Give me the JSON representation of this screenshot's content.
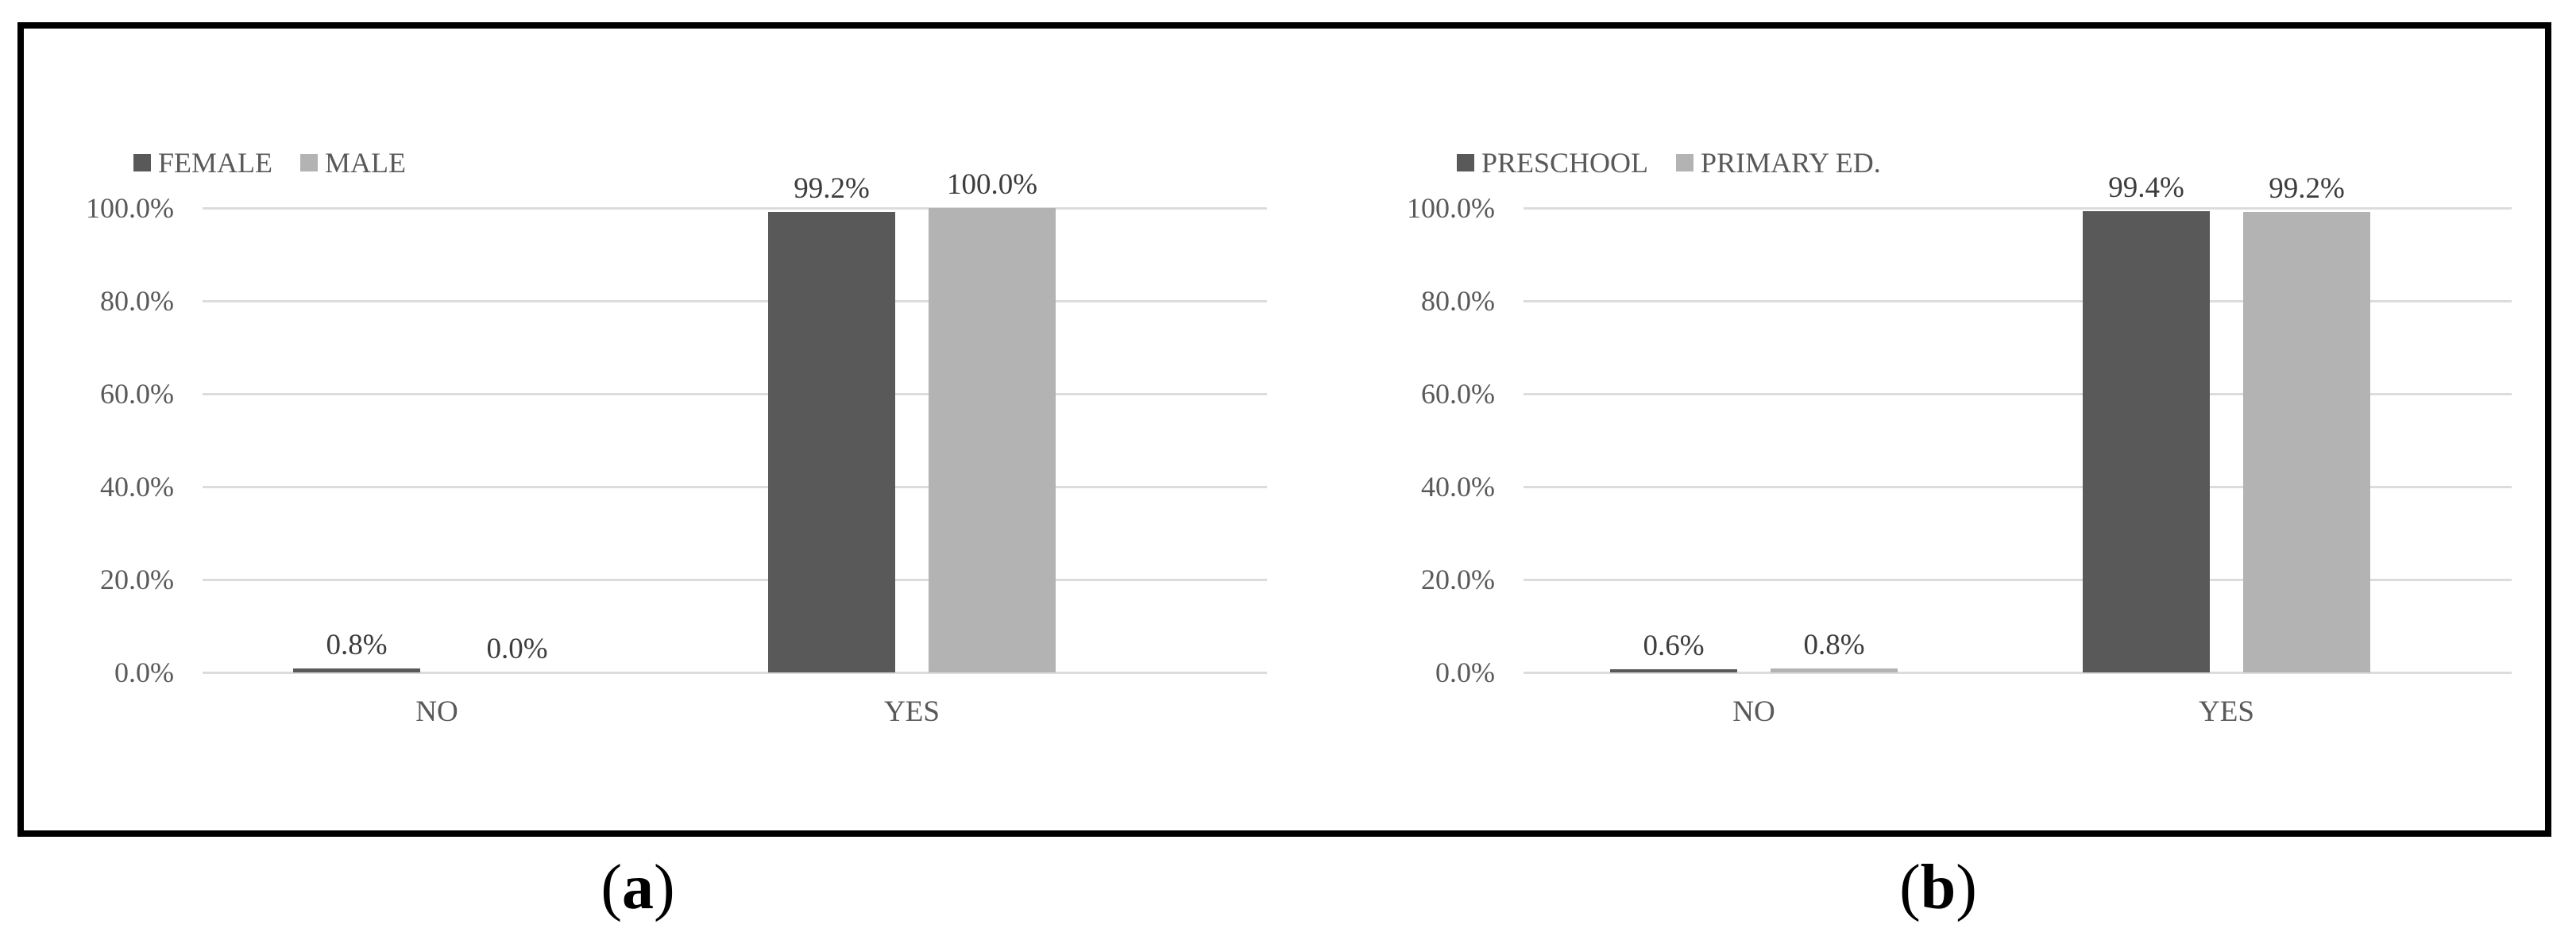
{
  "captions": [
    {
      "open": "(",
      "letter": "a",
      "close": ")"
    },
    {
      "open": "(",
      "letter": "b",
      "close": ")"
    }
  ],
  "colors": {
    "bar_dark": "#595959",
    "bar_light": "#b3b3b3",
    "gridline": "#dcdcdc",
    "tick_text": "#595959",
    "data_label_text": "#3d3d3d",
    "frame": "#000000"
  },
  "chart_data": [
    {
      "type": "bar",
      "panel_label": "(a)",
      "title": "",
      "xlabel": "",
      "ylabel": "",
      "categories": [
        "NO",
        "YES"
      ],
      "series": [
        {
          "name": "FEMALE",
          "color": "#595959",
          "values": [
            0.8,
            99.2
          ],
          "labels": [
            "0.8%",
            "99.2%"
          ]
        },
        {
          "name": "MALE",
          "color": "#b3b3b3",
          "values": [
            0.0,
            100.0
          ],
          "labels": [
            "0.0%",
            "100.0%"
          ]
        }
      ],
      "ylim": [
        0,
        100
      ],
      "yticks": [
        "0.0%",
        "20.0%",
        "40.0%",
        "60.0%",
        "80.0%",
        "100.0%"
      ],
      "grid": true,
      "legend_position": "top-left"
    },
    {
      "type": "bar",
      "panel_label": "(b)",
      "title": "",
      "xlabel": "",
      "ylabel": "",
      "categories": [
        "NO",
        "YES"
      ],
      "series": [
        {
          "name": "PRESCHOOL",
          "color": "#595959",
          "values": [
            0.6,
            99.4
          ],
          "labels": [
            "0.6%",
            "99.4%"
          ]
        },
        {
          "name": "PRIMARY ED.",
          "color": "#b3b3b3",
          "values": [
            0.8,
            99.2
          ],
          "labels": [
            "0.8%",
            "99.2%"
          ]
        }
      ],
      "ylim": [
        0,
        100
      ],
      "yticks": [
        "0.0%",
        "20.0%",
        "40.0%",
        "60.0%",
        "80.0%",
        "100.0%"
      ],
      "grid": true,
      "legend_position": "top-left"
    }
  ]
}
